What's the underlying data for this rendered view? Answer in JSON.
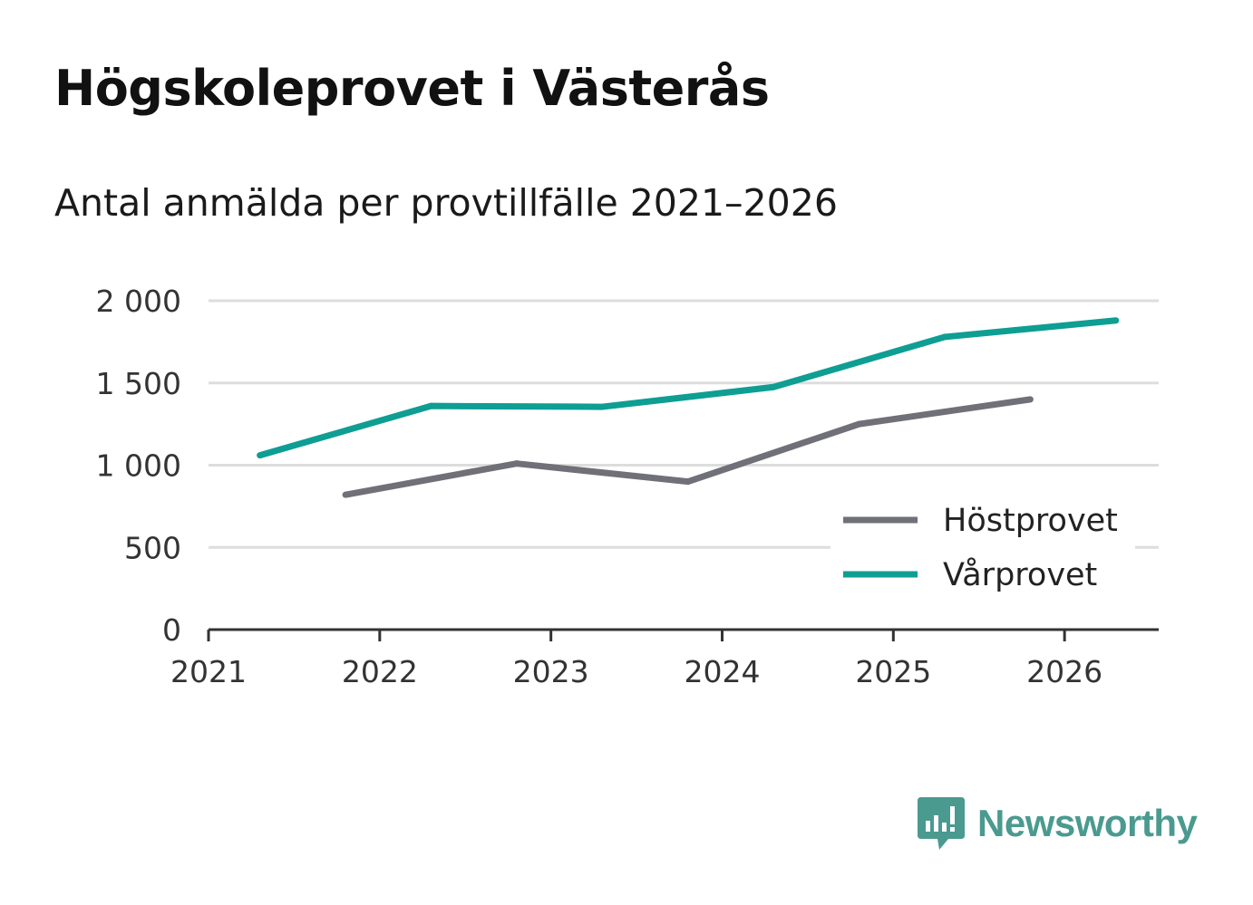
{
  "header": {
    "title": "Högskoleprovet i Västerås",
    "subtitle": "Antal anmälda per provtillfälle 2021–2026"
  },
  "colors": {
    "hostprovet": "#707078",
    "varprovet": "#0e9e93",
    "grid": "#dddddd",
    "axis": "#333333",
    "brand": "#4a9a8f"
  },
  "brand": {
    "name": "Newsworthy",
    "icon": "bar-chart-speech-bubble-icon"
  },
  "chart_data": {
    "type": "line",
    "title": "Högskoleprovet i Västerås",
    "subtitle": "Antal anmälda per provtillfälle 2021–2026",
    "xlabel": "",
    "ylabel": "",
    "xlim": [
      2021,
      2026.55
    ],
    "ylim": [
      0,
      2000
    ],
    "x_ticks": [
      2021,
      2022,
      2023,
      2024,
      2025,
      2026
    ],
    "x_tick_labels": [
      "2021",
      "2022",
      "2023",
      "2024",
      "2025",
      "2026"
    ],
    "y_ticks": [
      0,
      500,
      1000,
      1500,
      2000
    ],
    "y_tick_labels": [
      "0",
      "500",
      "1 000",
      "1 500",
      "2 000"
    ],
    "grid": true,
    "legend_position": "bottom-right",
    "series": [
      {
        "name": "Höstprovet",
        "color_key": "hostprovet",
        "x": [
          2021.8,
          2022.8,
          2023.8,
          2024.8,
          2025.8
        ],
        "values": [
          820,
          1010,
          900,
          1250,
          1400
        ]
      },
      {
        "name": "Vårprovet",
        "color_key": "varprovet",
        "x": [
          2021.3,
          2022.3,
          2023.3,
          2024.3,
          2025.3,
          2026.3
        ],
        "values": [
          1060,
          1360,
          1355,
          1475,
          1780,
          1880
        ]
      }
    ]
  }
}
